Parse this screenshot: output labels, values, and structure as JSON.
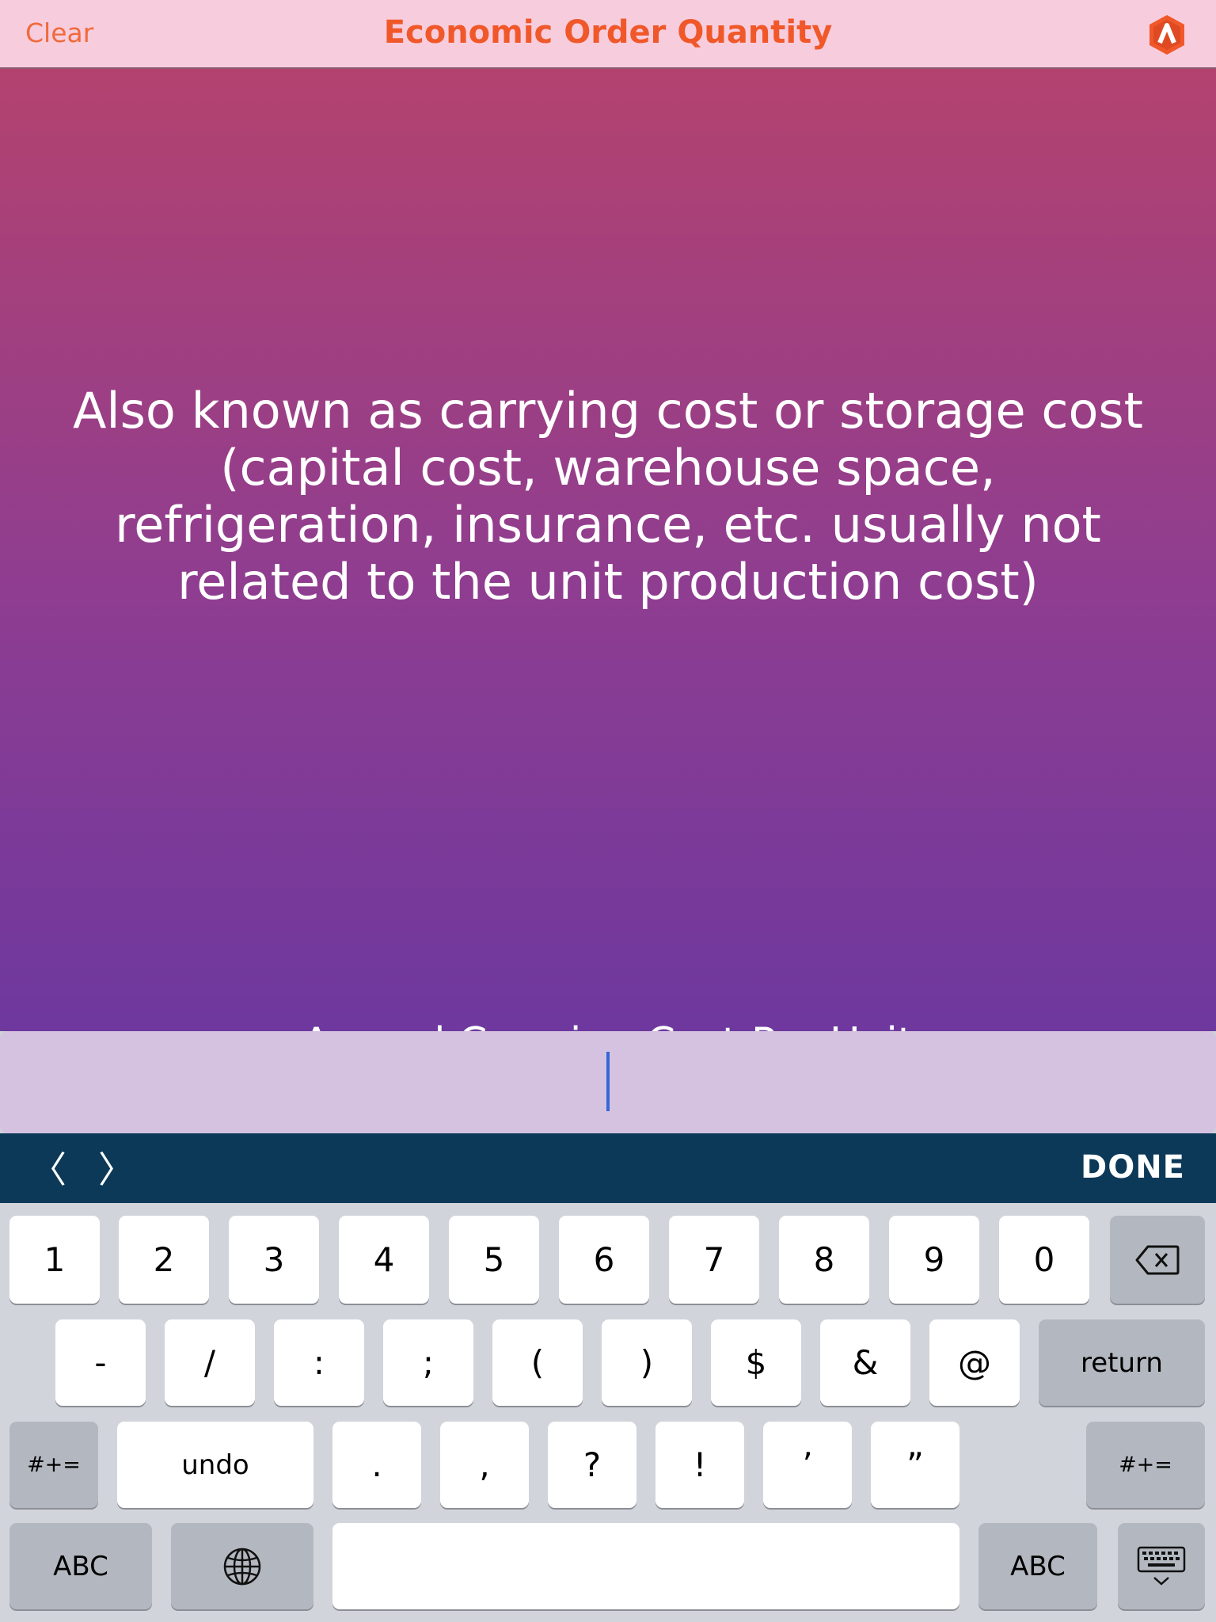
{
  "header": {
    "clear_label": "Clear",
    "title": "Economic Order Quantity",
    "logo_icon": "app-logo-icon"
  },
  "main": {
    "description": "Also known as carrying cost or storage cost (capital cost, warehouse space, refrigeration, insurance, etc. usually not related to the unit production cost)",
    "field_label": "Annual Carrying Cost Per Unit",
    "input_value": ""
  },
  "toolbar": {
    "prev_label": "〈",
    "next_label": "〉",
    "done_label": "DONE"
  },
  "keyboard": {
    "row1": [
      "1",
      "2",
      "3",
      "4",
      "5",
      "6",
      "7",
      "8",
      "9",
      "0"
    ],
    "row2": [
      "-",
      "/",
      ":",
      ";",
      "(",
      ")",
      "$",
      "&",
      "@"
    ],
    "return_label": "return",
    "symbols_label": "#+=",
    "undo_label": "undo",
    "row3": [
      ".",
      ",",
      "?",
      "!",
      "’",
      "”"
    ],
    "abc_label": "ABC"
  },
  "colors": {
    "accent": "#f0582a",
    "header_bg": "#f7cddd",
    "gradient_top": "#b3426f",
    "gradient_bottom": "#6e389e",
    "toolbar_bg": "#0c3958",
    "input_bg": "#d5c2e1",
    "caret": "#3566d9"
  }
}
